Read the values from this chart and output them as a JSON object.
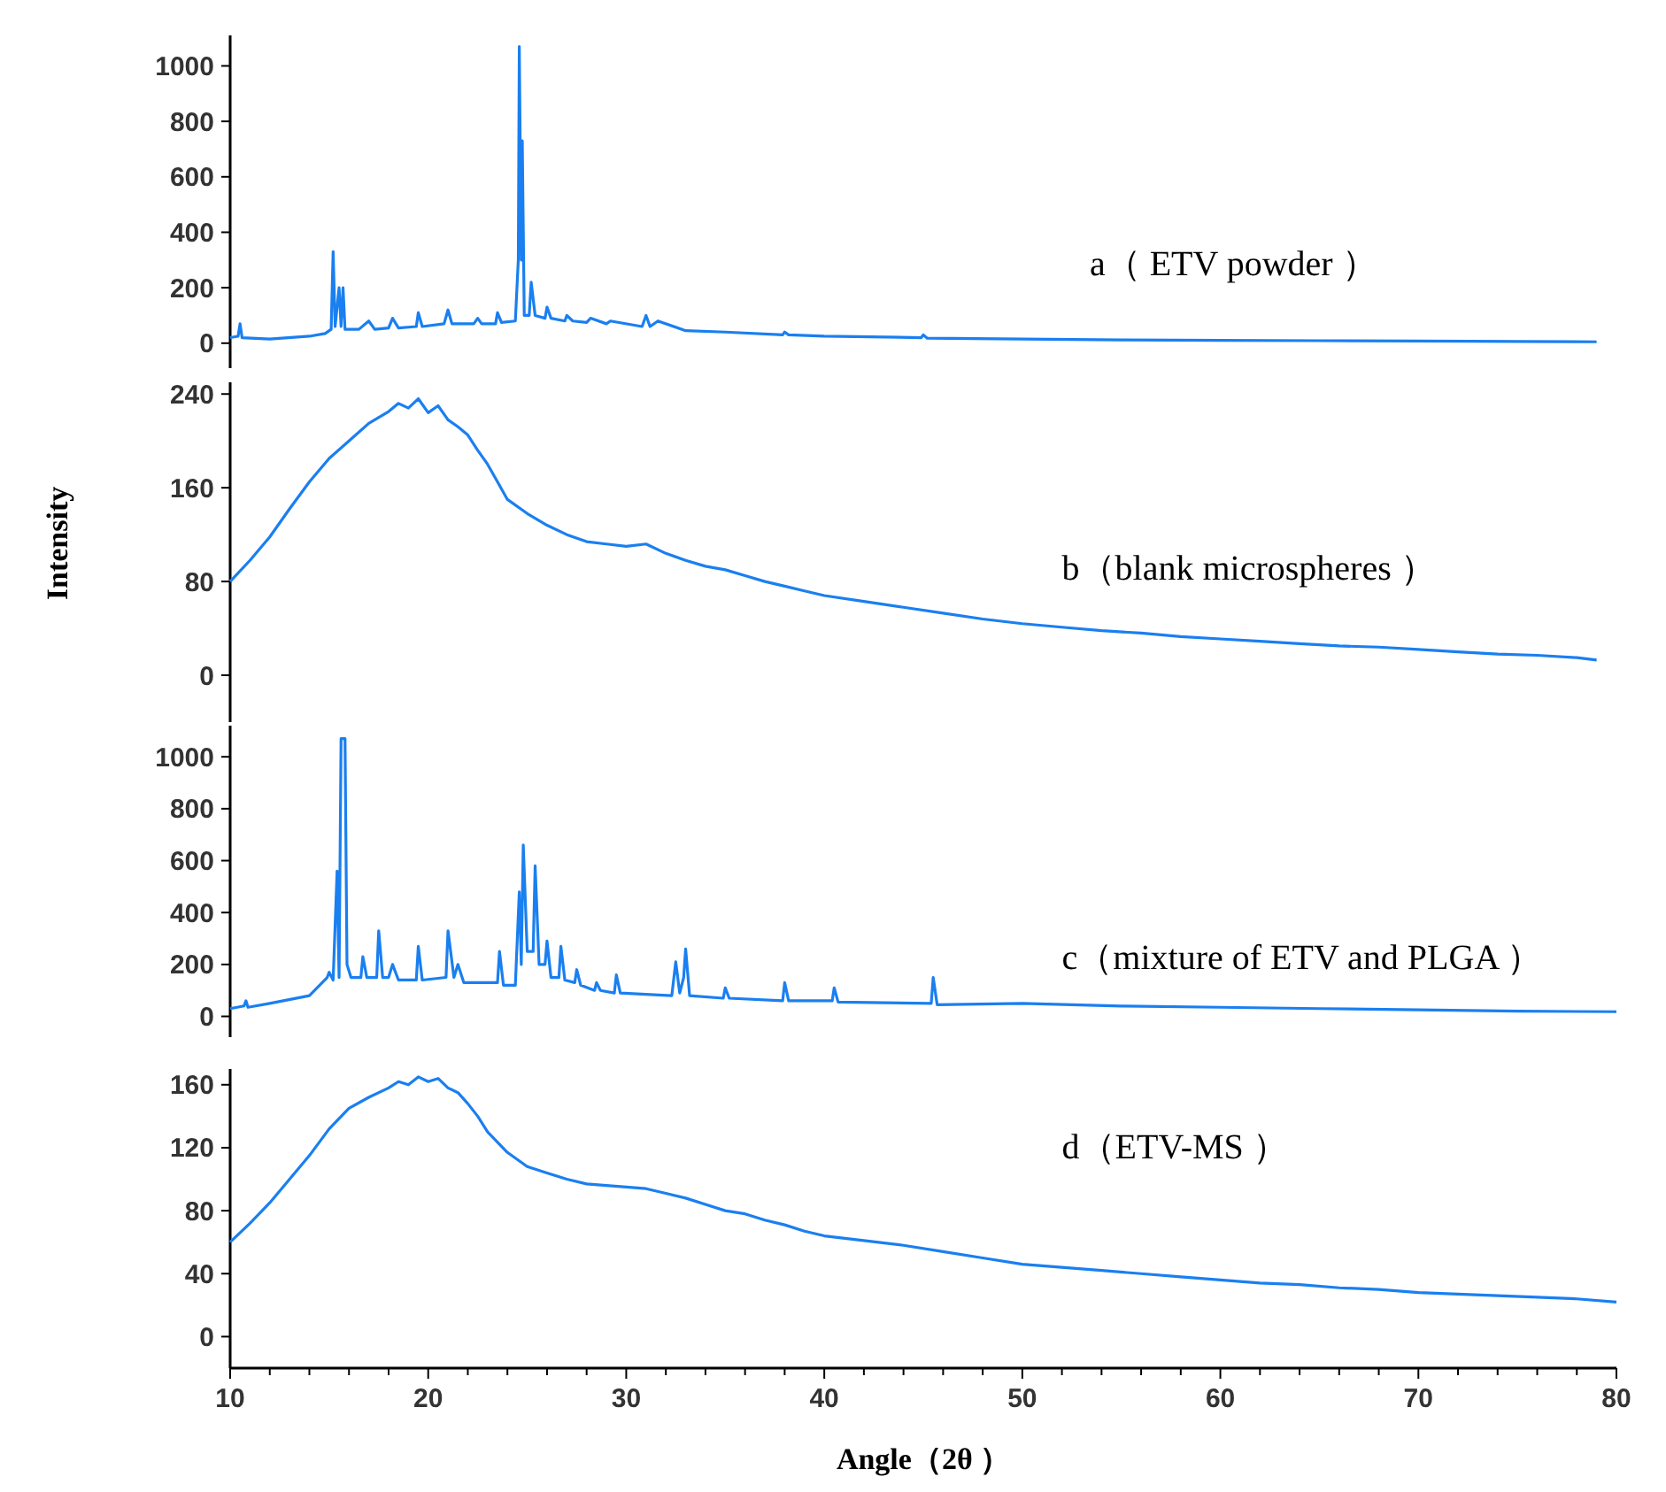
{
  "chart_data": [
    {
      "type": "line",
      "xlim": [
        10,
        80
      ],
      "ylim": [
        -90,
        1110
      ],
      "yticks": [
        0,
        200,
        400,
        600,
        800,
        1000
      ],
      "tick_labels": "y",
      "grid": false,
      "legend": false,
      "marker": "none",
      "line_style": "solid",
      "series": [
        {
          "name": "a（ ETV powder ）",
          "color": "#1a7ff0",
          "x": [
            10,
            10.4,
            10.5,
            10.6,
            12,
            14,
            14.8,
            15.1,
            15.2,
            15.3,
            15.5,
            15.6,
            15.7,
            15.8,
            16.5,
            17,
            17.3,
            18,
            18.2,
            18.5,
            19.4,
            19.5,
            19.7,
            20.8,
            21,
            21.2,
            22.3,
            22.5,
            22.7,
            23.4,
            23.5,
            23.7,
            24.4,
            24.55,
            24.6,
            24.7,
            24.75,
            24.85,
            25.1,
            25.2,
            25.4,
            25.9,
            26,
            26.2,
            26.9,
            27,
            27.3,
            28,
            28.2,
            29,
            29.2,
            30.8,
            31,
            31.2,
            31.6,
            33,
            35,
            37.9,
            38,
            38.2,
            40,
            44.9,
            45,
            45.2,
            50,
            55,
            60,
            65,
            70,
            75,
            79
          ],
          "values": [
            20,
            25,
            70,
            20,
            15,
            25,
            35,
            50,
            330,
            60,
            200,
            60,
            200,
            50,
            50,
            80,
            50,
            55,
            90,
            55,
            60,
            110,
            60,
            70,
            120,
            70,
            70,
            90,
            70,
            70,
            110,
            75,
            80,
            300,
            1070,
            300,
            730,
            100,
            100,
            220,
            100,
            90,
            130,
            90,
            80,
            100,
            80,
            75,
            90,
            70,
            80,
            60,
            100,
            60,
            80,
            45,
            40,
            30,
            40,
            30,
            25,
            20,
            30,
            18,
            15,
            12,
            10,
            9,
            8,
            6,
            5
          ]
        }
      ]
    },
    {
      "type": "line",
      "xlim": [
        10,
        80
      ],
      "ylim": [
        -40,
        250
      ],
      "yticks": [
        0,
        80,
        160,
        240
      ],
      "tick_labels": "y",
      "ylabel": "Intensity",
      "grid": false,
      "legend": false,
      "marker": "none",
      "line_style": "solid",
      "series": [
        {
          "name": "b（blank microspheres ）",
          "color": "#1a7ff0",
          "x": [
            10,
            11,
            12,
            13,
            14,
            15,
            16,
            17,
            18,
            18.5,
            19,
            19.5,
            20,
            20.5,
            21,
            21.5,
            22,
            22.5,
            23,
            23.5,
            24,
            25,
            26,
            27,
            28,
            29,
            30,
            31,
            32,
            33,
            34,
            35,
            36,
            37,
            38,
            39,
            40,
            42,
            44,
            46,
            48,
            50,
            52,
            54,
            56,
            58,
            60,
            62,
            64,
            66,
            68,
            70,
            72,
            74,
            76,
            78,
            79
          ],
          "values": [
            80,
            98,
            118,
            142,
            165,
            185,
            200,
            215,
            225,
            232,
            228,
            236,
            224,
            230,
            218,
            212,
            205,
            192,
            180,
            165,
            150,
            138,
            128,
            120,
            114,
            112,
            110,
            112,
            104,
            98,
            93,
            90,
            85,
            80,
            76,
            72,
            68,
            63,
            58,
            53,
            48,
            44,
            41,
            38,
            36,
            33,
            31,
            29,
            27,
            25,
            24,
            22,
            20,
            18,
            17,
            15,
            13
          ]
        }
      ]
    },
    {
      "type": "line",
      "xlim": [
        10,
        80
      ],
      "ylim": [
        -80,
        1120
      ],
      "yticks": [
        0,
        200,
        400,
        600,
        800,
        1000
      ],
      "tick_labels": "y",
      "grid": false,
      "legend": false,
      "marker": "none",
      "line_style": "solid",
      "series": [
        {
          "name": "c（mixture of ETV and PLGA ）",
          "color": "#1a7ff0",
          "x": [
            10,
            10.7,
            10.8,
            10.9,
            12,
            14,
            14.9,
            15,
            15.2,
            15.4,
            15.5,
            15.6,
            15.8,
            15.9,
            16.1,
            16.6,
            16.7,
            16.9,
            17.4,
            17.5,
            17.7,
            18,
            18.2,
            18.5,
            19.4,
            19.5,
            19.7,
            20.9,
            21,
            21.3,
            21.5,
            21.8,
            23.5,
            23.6,
            23.8,
            24.4,
            24.6,
            24.7,
            24.8,
            25,
            25.3,
            25.4,
            25.6,
            25.9,
            26,
            26.2,
            26.6,
            26.7,
            26.9,
            27.4,
            27.5,
            27.7,
            28.4,
            28.5,
            28.7,
            29.4,
            29.5,
            29.7,
            32.3,
            32.5,
            32.7,
            32.9,
            33,
            33.2,
            34.9,
            35,
            35.2,
            37.9,
            38,
            38.2,
            40.4,
            40.5,
            40.7,
            45.4,
            45.5,
            45.7,
            50,
            55,
            60,
            65,
            70,
            75,
            80
          ],
          "values": [
            30,
            40,
            60,
            35,
            50,
            80,
            150,
            170,
            140,
            560,
            150,
            1070,
            1070,
            200,
            150,
            150,
            230,
            150,
            150,
            330,
            150,
            150,
            200,
            140,
            140,
            270,
            140,
            150,
            330,
            150,
            200,
            130,
            130,
            250,
            120,
            120,
            480,
            200,
            660,
            250,
            250,
            580,
            200,
            200,
            290,
            150,
            150,
            270,
            140,
            130,
            180,
            120,
            100,
            130,
            100,
            90,
            160,
            90,
            80,
            210,
            90,
            150,
            260,
            80,
            70,
            110,
            70,
            60,
            130,
            60,
            60,
            110,
            55,
            50,
            150,
            45,
            50,
            40,
            35,
            30,
            25,
            20,
            18
          ]
        }
      ]
    },
    {
      "type": "line",
      "xlim": [
        10,
        80
      ],
      "ylim": [
        -20,
        170
      ],
      "yticks": [
        0,
        40,
        80,
        120,
        160
      ],
      "xticks": [
        10,
        {
          "value": 12,
          "label": null
        },
        {
          "value": 14,
          "label": null
        },
        {
          "value": 16,
          "label": null
        },
        {
          "value": 18,
          "label": null
        },
        20,
        {
          "value": 22,
          "label": null
        },
        {
          "value": 24,
          "label": null
        },
        {
          "value": 26,
          "label": null
        },
        {
          "value": 28,
          "label": null
        },
        30,
        {
          "value": 32,
          "label": null
        },
        {
          "value": 34,
          "label": null
        },
        {
          "value": 36,
          "label": null
        },
        {
          "value": 38,
          "label": null
        },
        40,
        {
          "value": 42,
          "label": null
        },
        {
          "value": 44,
          "label": null
        },
        {
          "value": 46,
          "label": null
        },
        {
          "value": 48,
          "label": null
        },
        50,
        {
          "value": 52,
          "label": null
        },
        {
          "value": 54,
          "label": null
        },
        {
          "value": 56,
          "label": null
        },
        {
          "value": 58,
          "label": null
        },
        60,
        {
          "value": 62,
          "label": null
        },
        {
          "value": 64,
          "label": null
        },
        {
          "value": 66,
          "label": null
        },
        {
          "value": 68,
          "label": null
        },
        70,
        {
          "value": 72,
          "label": null
        },
        {
          "value": 74,
          "label": null
        },
        {
          "value": 76,
          "label": null
        },
        {
          "value": 78,
          "label": null
        },
        80
      ],
      "xlabel": "Angle（2θ ）",
      "grid": false,
      "legend": false,
      "marker": "none",
      "line_style": "solid",
      "series": [
        {
          "name": "d（ETV-MS ）",
          "color": "#1a7ff0",
          "x": [
            10,
            11,
            12,
            13,
            14,
            15,
            16,
            17,
            18,
            18.5,
            19,
            19.5,
            20,
            20.5,
            21,
            21.5,
            22,
            22.5,
            23,
            24,
            25,
            26,
            27,
            28,
            29,
            30,
            31,
            32,
            33,
            34,
            35,
            36,
            37,
            38,
            39,
            40,
            42,
            44,
            46,
            48,
            50,
            52,
            54,
            56,
            58,
            60,
            62,
            64,
            66,
            68,
            70,
            72,
            74,
            76,
            78,
            80
          ],
          "values": [
            60,
            72,
            85,
            100,
            115,
            132,
            145,
            152,
            158,
            162,
            160,
            165,
            162,
            164,
            158,
            155,
            148,
            140,
            130,
            117,
            108,
            104,
            100,
            97,
            96,
            95,
            94,
            91,
            88,
            84,
            80,
            78,
            74,
            71,
            67,
            64,
            61,
            58,
            54,
            50,
            46,
            44,
            42,
            40,
            38,
            36,
            34,
            33,
            31,
            30,
            28,
            27,
            26,
            25,
            24,
            22
          ]
        }
      ]
    }
  ]
}
